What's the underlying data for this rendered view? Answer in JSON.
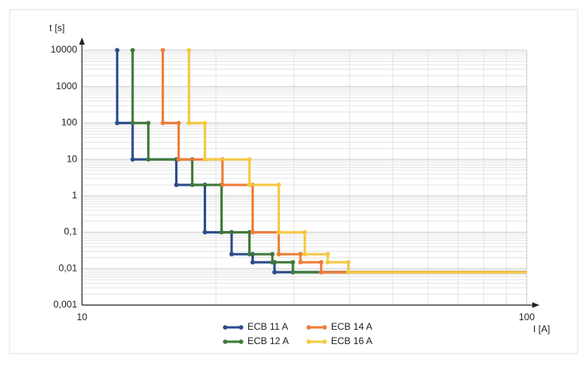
{
  "chart_data": {
    "type": "step-line",
    "x_label": "I [A]",
    "y_label": "t [s]",
    "log_x": true,
    "log_y": true,
    "grid": true,
    "minor_grid": true,
    "legend": "bottom",
    "xlim": [
      10,
      100
    ],
    "xticks": [
      10,
      100
    ],
    "ylim": [
      0.001,
      10000
    ],
    "yticks": [
      {
        "value": 0.001,
        "label": "0,001"
      },
      {
        "value": 0.01,
        "label": "0,01"
      },
      {
        "value": 0.1,
        "label": "0,1"
      },
      1,
      10,
      100,
      1000,
      10000
    ],
    "series": [
      {
        "name": "ECB 11 A",
        "color": "#2b4c8c",
        "x": [
          12,
          12,
          13,
          13,
          16.3,
          16.3,
          18.9,
          18.9,
          21.7,
          21.7,
          24.2,
          24.2,
          27.1,
          27.1,
          100
        ],
        "values": [
          10000,
          100,
          100,
          10,
          10,
          2,
          2,
          0.1,
          0.1,
          0.025,
          0.025,
          0.015,
          0.015,
          0.008,
          0.008
        ]
      },
      {
        "name": "ECB 12 A",
        "color": "#3f7a3a",
        "x": [
          13,
          13,
          14.1,
          14.1,
          17.7,
          17.7,
          20.6,
          20.6,
          23.8,
          23.8,
          26.8,
          26.8,
          29.8,
          29.8,
          100
        ],
        "values": [
          10000,
          100,
          100,
          10,
          10,
          2,
          2,
          0.1,
          0.1,
          0.025,
          0.025,
          0.015,
          0.015,
          0.008,
          0.008
        ]
      },
      {
        "name": "ECB 14 A",
        "color": "#ef7d3a",
        "x": [
          15.2,
          15.2,
          16.5,
          16.5,
          20.7,
          20.7,
          24.2,
          24.2,
          27.7,
          27.7,
          31,
          31,
          34.5,
          34.5,
          100
        ],
        "values": [
          10000,
          100,
          100,
          10,
          10,
          2,
          2,
          0.1,
          0.1,
          0.025,
          0.025,
          0.015,
          0.015,
          0.008,
          0.008
        ]
      },
      {
        "name": "ECB 16 A",
        "color": "#f5c842",
        "x": [
          17.4,
          17.4,
          18.9,
          18.9,
          23.8,
          23.8,
          27.7,
          27.7,
          31.7,
          31.7,
          35.7,
          35.7,
          39.7,
          39.7,
          100
        ],
        "values": [
          10000,
          100,
          100,
          10,
          10,
          2,
          2,
          0.1,
          0.1,
          0.025,
          0.025,
          0.015,
          0.015,
          0.008,
          0.008
        ]
      }
    ]
  }
}
